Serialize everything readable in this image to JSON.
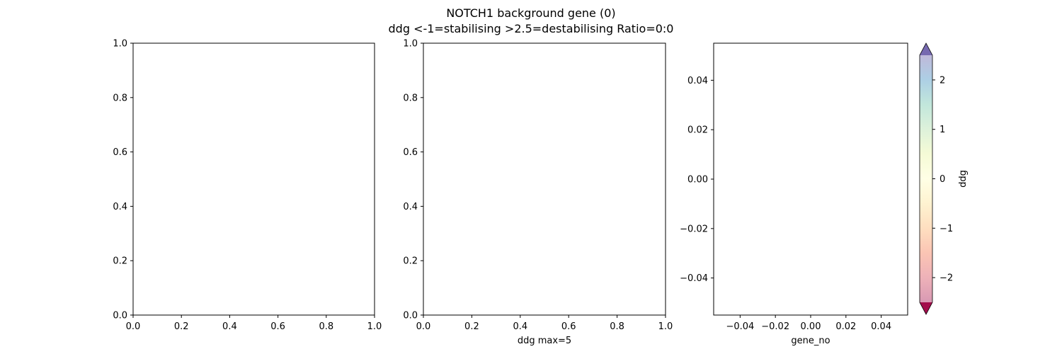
{
  "title_line1": "NOTCH1 background gene (0)",
  "title_line2": "ddg <-1=stabilising >2.5=destabilising Ratio=0:0",
  "chart_data": [
    {
      "type": "scatter",
      "panel": "left",
      "xlabel": "",
      "ylabel": "",
      "xlim": [
        0,
        1
      ],
      "ylim": [
        0,
        1
      ],
      "xticks": [
        "0.0",
        "0.2",
        "0.4",
        "0.6",
        "0.8",
        "1.0"
      ],
      "yticks": [
        "0.0",
        "0.2",
        "0.4",
        "0.6",
        "0.8",
        "1.0"
      ],
      "series": []
    },
    {
      "type": "scatter",
      "panel": "middle",
      "xlabel": "ddg max=5",
      "ylabel": "",
      "xlim": [
        0,
        1
      ],
      "ylim": [
        0,
        1
      ],
      "xticks": [
        "0.0",
        "0.2",
        "0.4",
        "0.6",
        "0.8",
        "1.0"
      ],
      "yticks": [
        "0.0",
        "0.2",
        "0.4",
        "0.6",
        "0.8",
        "1.0"
      ],
      "series": []
    },
    {
      "type": "scatter",
      "panel": "right",
      "xlabel": "gene_no",
      "ylabel": "",
      "xlim": [
        -0.055,
        0.055
      ],
      "ylim": [
        -0.055,
        0.055
      ],
      "xticks": [
        "−0.04",
        "−0.02",
        "0.00",
        "0.02",
        "0.04"
      ],
      "yticks": [
        "−0.04",
        "−0.02",
        "0.00",
        "0.02",
        "0.04"
      ],
      "series": []
    }
  ],
  "colorbar": {
    "label": "ddg",
    "range": [
      -2.5,
      2.5
    ],
    "extend": "both",
    "ticks": [
      "−2",
      "−1",
      "0",
      "1",
      "2"
    ],
    "colors": [
      "#9e0142",
      "#d53e4f",
      "#f46d43",
      "#fdae61",
      "#fee08b",
      "#ffffbf",
      "#e6f598",
      "#abdda4",
      "#66c2a5",
      "#3288bd",
      "#5e4fa2"
    ],
    "alpha": 0.4
  }
}
